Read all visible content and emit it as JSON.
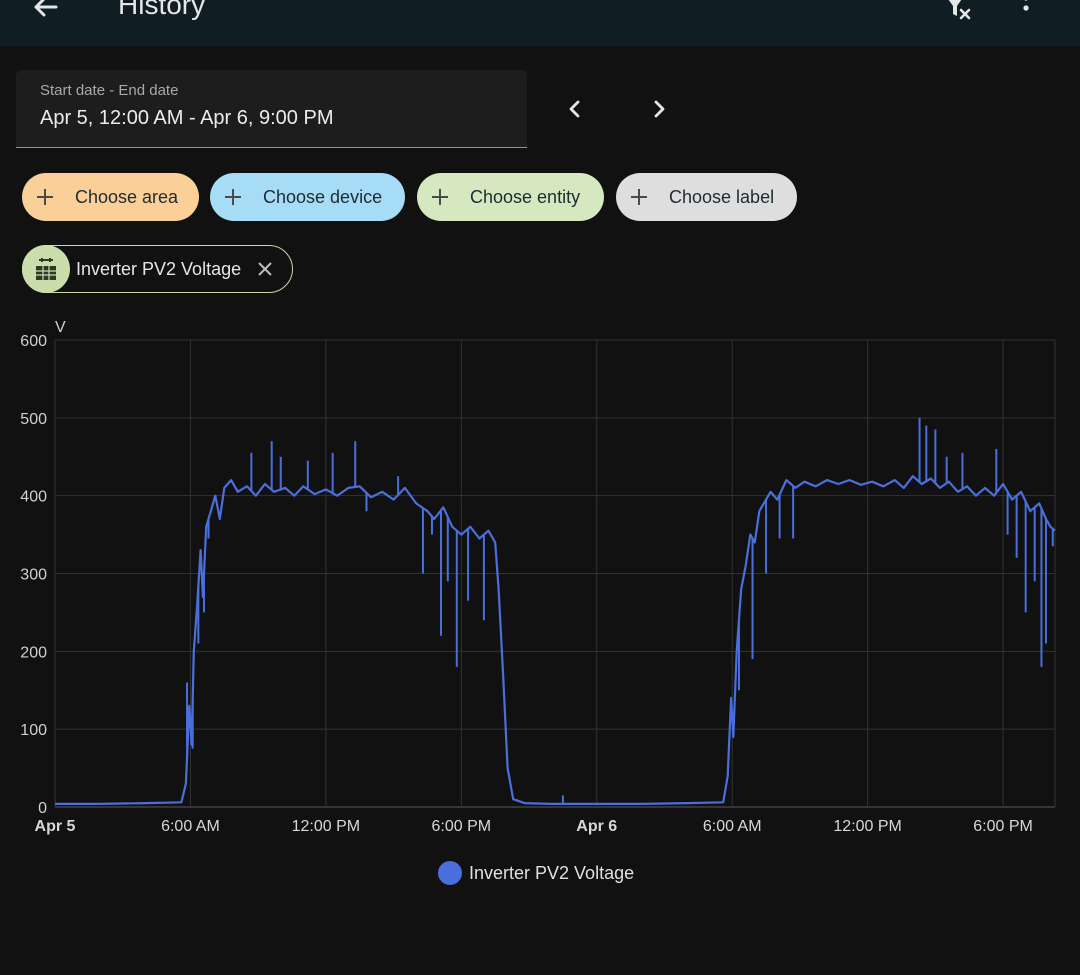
{
  "app_bar": {
    "title": "History",
    "back_icon": "arrow-left-icon",
    "filter_clear_icon": "filter-remove-icon",
    "overflow_icon": "dots-vertical-icon"
  },
  "date_range": {
    "label": "Start date - End date",
    "value": "Apr 5, 12:00 AM - Apr 6, 9:00 PM"
  },
  "target_chips": [
    {
      "label": "Choose area",
      "color": "#fbcf98"
    },
    {
      "label": "Choose device",
      "color": "#a6dcf6"
    },
    {
      "label": "Choose entity",
      "color": "#d5e8c0"
    },
    {
      "label": "Choose label",
      "color": "#dedede"
    }
  ],
  "selected_entity": {
    "name": "Inverter PV2 Voltage",
    "icon": "solar-panel-icon"
  },
  "colors": {
    "series": "#4a6fdd",
    "background": "#111111",
    "app_bar": "#101e24"
  },
  "chart_data": {
    "type": "line",
    "ylabel": "V",
    "ylim": [
      0,
      600
    ],
    "yticks": [
      0,
      100,
      200,
      300,
      400,
      500,
      600
    ],
    "x_unit": "hours since Apr 5 12:00 AM",
    "xlim": [
      0,
      44.3
    ],
    "xticks": [
      {
        "x": 0,
        "label": "Apr 5",
        "bold": true
      },
      {
        "x": 6,
        "label": "6:00 AM",
        "bold": false
      },
      {
        "x": 12,
        "label": "12:00 PM",
        "bold": false
      },
      {
        "x": 18,
        "label": "6:00 PM",
        "bold": false
      },
      {
        "x": 24,
        "label": "Apr 6",
        "bold": true
      },
      {
        "x": 30,
        "label": "6:00 AM",
        "bold": false
      },
      {
        "x": 36,
        "label": "12:00 PM",
        "bold": false
      },
      {
        "x": 42,
        "label": "6:00 PM",
        "bold": false
      }
    ],
    "grid": true,
    "legend": "bottom-center",
    "series": [
      {
        "name": "Inverter PV2 Voltage",
        "points": [
          [
            0.0,
            4
          ],
          [
            2.0,
            4
          ],
          [
            4.0,
            5
          ],
          [
            5.6,
            6
          ],
          [
            5.8,
            30
          ],
          [
            5.95,
            130
          ],
          [
            6.05,
            80
          ],
          [
            6.15,
            200
          ],
          [
            6.3,
            260
          ],
          [
            6.45,
            330
          ],
          [
            6.55,
            270
          ],
          [
            6.7,
            360
          ],
          [
            6.9,
            380
          ],
          [
            7.1,
            400
          ],
          [
            7.3,
            370
          ],
          [
            7.5,
            410
          ],
          [
            7.8,
            420
          ],
          [
            8.1,
            405
          ],
          [
            8.5,
            412
          ],
          [
            8.9,
            400
          ],
          [
            9.3,
            415
          ],
          [
            9.7,
            405
          ],
          [
            10.2,
            410
          ],
          [
            10.6,
            400
          ],
          [
            11.0,
            412
          ],
          [
            11.5,
            402
          ],
          [
            12.0,
            408
          ],
          [
            12.5,
            400
          ],
          [
            13.0,
            410
          ],
          [
            13.5,
            412
          ],
          [
            14.0,
            398
          ],
          [
            14.5,
            405
          ],
          [
            15.0,
            395
          ],
          [
            15.5,
            410
          ],
          [
            16.0,
            390
          ],
          [
            16.5,
            380
          ],
          [
            16.8,
            370
          ],
          [
            17.2,
            385
          ],
          [
            17.6,
            360
          ],
          [
            18.0,
            350
          ],
          [
            18.4,
            360
          ],
          [
            18.8,
            345
          ],
          [
            19.2,
            355
          ],
          [
            19.5,
            340
          ],
          [
            19.65,
            280
          ],
          [
            19.85,
            170
          ],
          [
            20.05,
            50
          ],
          [
            20.3,
            10
          ],
          [
            20.8,
            5
          ],
          [
            22.0,
            4
          ],
          [
            24.0,
            4
          ],
          [
            26.0,
            4
          ],
          [
            28.0,
            5
          ],
          [
            29.6,
            6
          ],
          [
            29.8,
            40
          ],
          [
            29.95,
            140
          ],
          [
            30.05,
            90
          ],
          [
            30.2,
            200
          ],
          [
            30.4,
            280
          ],
          [
            30.6,
            310
          ],
          [
            30.8,
            350
          ],
          [
            31.0,
            340
          ],
          [
            31.2,
            380
          ],
          [
            31.4,
            390
          ],
          [
            31.7,
            405
          ],
          [
            32.0,
            395
          ],
          [
            32.4,
            420
          ],
          [
            32.8,
            410
          ],
          [
            33.2,
            418
          ],
          [
            33.7,
            412
          ],
          [
            34.2,
            420
          ],
          [
            34.7,
            415
          ],
          [
            35.2,
            420
          ],
          [
            35.7,
            414
          ],
          [
            36.2,
            418
          ],
          [
            36.7,
            412
          ],
          [
            37.2,
            420
          ],
          [
            37.6,
            410
          ],
          [
            38.0,
            425
          ],
          [
            38.4,
            415
          ],
          [
            38.8,
            422
          ],
          [
            39.2,
            410
          ],
          [
            39.6,
            418
          ],
          [
            40.0,
            405
          ],
          [
            40.4,
            412
          ],
          [
            40.8,
            400
          ],
          [
            41.2,
            410
          ],
          [
            41.6,
            400
          ],
          [
            42.0,
            415
          ],
          [
            42.4,
            395
          ],
          [
            42.8,
            405
          ],
          [
            43.2,
            380
          ],
          [
            43.6,
            390
          ],
          [
            43.9,
            370
          ],
          [
            44.1,
            360
          ],
          [
            44.3,
            355
          ]
        ],
        "spikes": [
          [
            5.85,
            160
          ],
          [
            6.1,
            75
          ],
          [
            6.35,
            210
          ],
          [
            6.6,
            250
          ],
          [
            6.8,
            345
          ],
          [
            8.7,
            455
          ],
          [
            9.6,
            470
          ],
          [
            10.0,
            450
          ],
          [
            11.2,
            445
          ],
          [
            12.3,
            455
          ],
          [
            13.3,
            470
          ],
          [
            13.8,
            380
          ],
          [
            15.2,
            425
          ],
          [
            16.3,
            300
          ],
          [
            16.7,
            350
          ],
          [
            17.1,
            220
          ],
          [
            17.4,
            290
          ],
          [
            17.8,
            180
          ],
          [
            18.3,
            265
          ],
          [
            19.0,
            240
          ],
          [
            22.5,
            15
          ],
          [
            29.9,
            100
          ],
          [
            30.3,
            150
          ],
          [
            30.9,
            190
          ],
          [
            31.5,
            300
          ],
          [
            32.1,
            345
          ],
          [
            32.7,
            345
          ],
          [
            38.3,
            500
          ],
          [
            38.6,
            490
          ],
          [
            39.0,
            485
          ],
          [
            39.5,
            450
          ],
          [
            40.2,
            455
          ],
          [
            41.7,
            460
          ],
          [
            42.2,
            350
          ],
          [
            42.6,
            320
          ],
          [
            43.0,
            250
          ],
          [
            43.4,
            290
          ],
          [
            43.7,
            180
          ],
          [
            43.9,
            210
          ],
          [
            44.2,
            335
          ]
        ]
      }
    ]
  }
}
